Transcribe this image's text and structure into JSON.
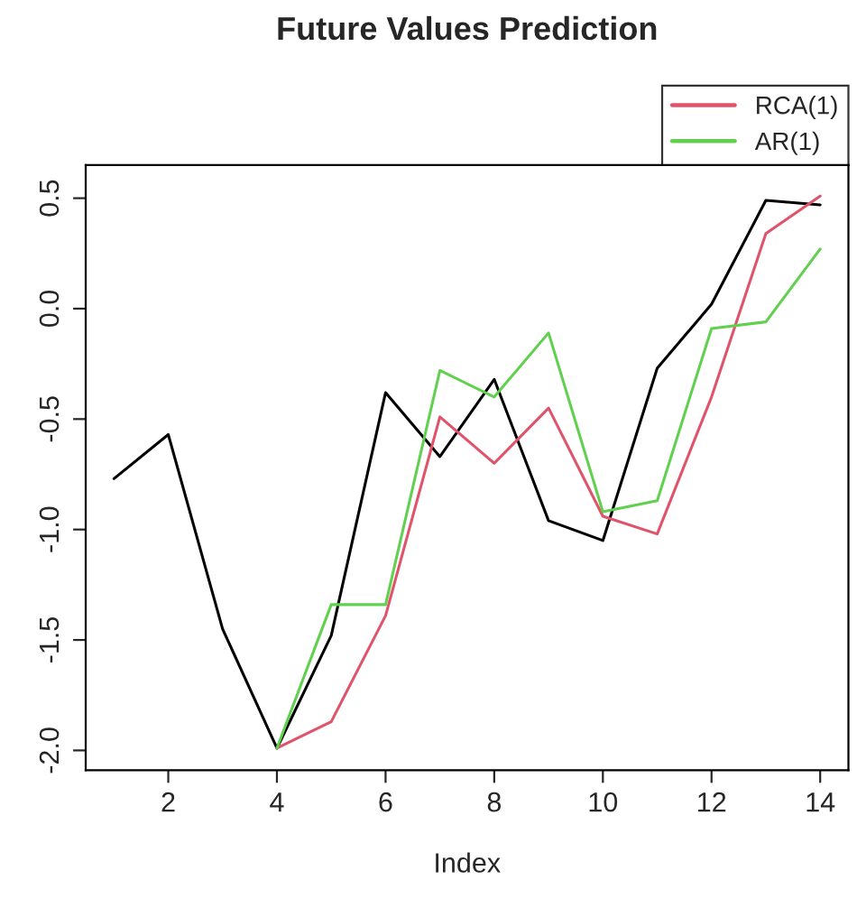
{
  "chart_data": {
    "type": "line",
    "title": "Future Values Prediction",
    "xlabel": "Index",
    "series": [
      {
        "color": "#000000",
        "x": [
          1,
          2,
          3,
          4,
          5,
          6,
          7,
          8,
          9,
          10,
          11,
          12,
          13,
          14
        ],
        "values": [
          -0.77,
          -0.57,
          -1.45,
          -1.99,
          -1.48,
          -0.38,
          -0.67,
          -0.32,
          -0.96,
          -1.05,
          -0.27,
          0.02,
          0.49,
          0.47
        ]
      },
      {
        "name": "RCA(1)",
        "color": "#df536b",
        "x": [
          4,
          5,
          6,
          7,
          8,
          9,
          10,
          11,
          12,
          13,
          14
        ],
        "values": [
          -1.99,
          -1.87,
          -1.39,
          -0.49,
          -0.7,
          -0.45,
          -0.94,
          -1.02,
          -0.4,
          0.34,
          0.51
        ]
      },
      {
        "name": "AR(1)",
        "color": "#61d04f",
        "x": [
          4,
          5,
          6,
          7,
          8,
          9,
          10,
          11,
          12,
          13,
          14
        ],
        "values": [
          -1.99,
          -1.34,
          -1.34,
          -0.28,
          -0.4,
          -0.11,
          -0.92,
          -0.87,
          -0.09,
          -0.06,
          0.27
        ]
      }
    ],
    "xlim": [
      0.48,
      14.52
    ],
    "ylim": [
      -2.09,
      0.65
    ],
    "xticks": [
      2,
      4,
      6,
      8,
      10,
      12,
      14
    ],
    "yticks": [
      {
        "value": -2,
        "label": "-2.0"
      },
      -1.5,
      {
        "value": -1,
        "label": "-1.0"
      },
      -0.5,
      {
        "value": 0,
        "label": "0.0"
      },
      0.5
    ],
    "grid": false,
    "legend": "top right",
    "marker": "none",
    "line_style": "solid"
  }
}
